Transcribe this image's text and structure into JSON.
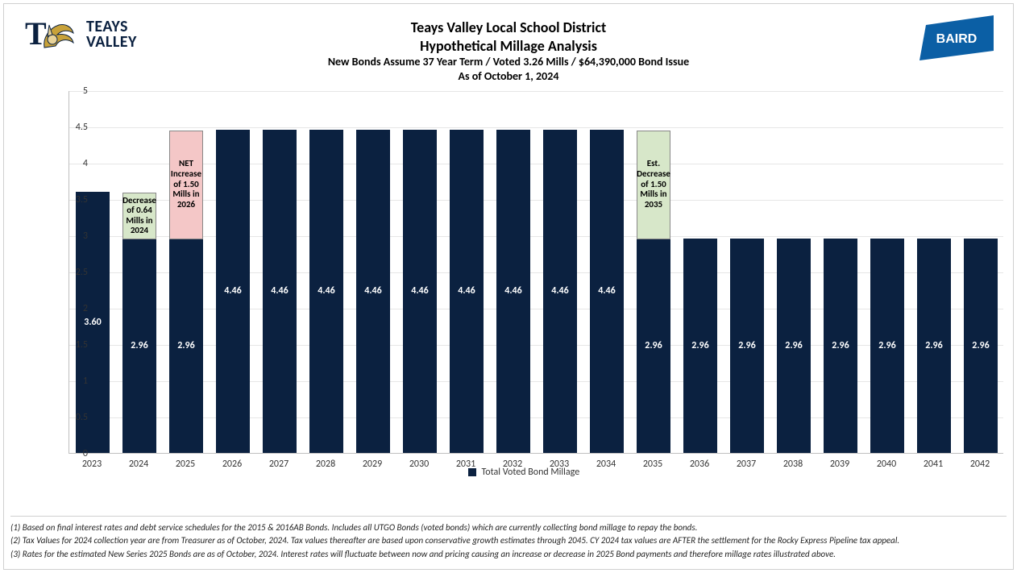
{
  "header": {
    "title_line1": "Teays Valley Local School District",
    "title_line2": "Hypothetical Millage Analysis",
    "subtitle_line1": "New Bonds Assume 37 Year Term / Voted 3.26 Mills / $64,390,000 Bond Issue",
    "subtitle_line2": "As of October 1, 2024",
    "logo_left_text_top": "TEAYS",
    "logo_left_text_bottom": "VALLEY",
    "logo_right_text": "BAIRD"
  },
  "chart": {
    "type": "bar",
    "series_name": "Total Voted Bond Millage",
    "bar_color": "#0b2140",
    "bar_label_color": "#ffffff",
    "background_color": "#ffffff",
    "grid_color": "#e6e6e6",
    "axis_color": "#bfbfbf",
    "tick_label_color": "#333333",
    "tick_fontsize": 12,
    "bar_label_fontsize": 12,
    "bar_width": 0.72,
    "categories": [
      "2023",
      "2024",
      "2025",
      "2026",
      "2027",
      "2028",
      "2029",
      "2030",
      "2031",
      "2032",
      "2033",
      "2034",
      "2035",
      "2036",
      "2037",
      "2038",
      "2039",
      "2040",
      "2041",
      "2042"
    ],
    "values": [
      3.6,
      2.96,
      2.96,
      4.46,
      4.46,
      4.46,
      4.46,
      4.46,
      4.46,
      4.46,
      4.46,
      4.46,
      2.96,
      2.96,
      2.96,
      2.96,
      2.96,
      2.96,
      2.96,
      2.96
    ],
    "value_labels": [
      "3.60",
      "2.96",
      "2.96",
      "4.46",
      "4.46",
      "4.46",
      "4.46",
      "4.46",
      "4.46",
      "4.46",
      "4.46",
      "4.46",
      "2.96",
      "2.96",
      "2.96",
      "2.96",
      "2.96",
      "2.96",
      "2.96",
      "2.96"
    ],
    "ylim": [
      0,
      5
    ],
    "ytick_step": 0.5,
    "ytick_labels": [
      "0",
      "0.5",
      "1",
      "1.5",
      "2",
      "2.5",
      "3",
      "3.5",
      "4",
      "4.5",
      "5"
    ]
  },
  "annotations": [
    {
      "text": "Decrease of 0.64 Mills in 2024",
      "bg_color": "#d7e7c9",
      "border_color": "#888888",
      "over_category_index": 1,
      "y_from": 2.96,
      "y_to": 3.6
    },
    {
      "text": "NET Increase of  1.50 Mills in 2026",
      "bg_color": "#f4c7c7",
      "border_color": "#888888",
      "over_category_index": 2,
      "y_from": 2.96,
      "y_to": 4.46
    },
    {
      "text": "Est. Decrease of 1.50 Mills in 2035",
      "bg_color": "#d7e7c9",
      "border_color": "#888888",
      "over_category_index": 12,
      "y_from": 2.96,
      "y_to": 4.46
    }
  ],
  "footnotes": {
    "f1": "(1) Based on final interest rates and debt service schedules for the 2015 & 2016AB Bonds.  Includes all UTGO Bonds (voted bonds) which are currently collecting bond millage to repay the bonds.",
    "f2": "(2) Tax Values for 2024 collection year are from Treasurer as of October, 2024.  Tax values thereafter are based upon conservative growth estimates through 2045.  CY 2024 tax values are AFTER the settlement for the Rocky Express Pipeline tax appeal.",
    "f3": "(3) Rates for the estimated New Series 2025 Bonds are as of October, 2024.  Interest rates will fluctuate between now and pricing causing an increase or decrease in 2025 Bond payments and therefore millage rates illustrated above."
  },
  "colors": {
    "brand_navy": "#0b2140",
    "baird_blue": "#0b5fa5"
  }
}
